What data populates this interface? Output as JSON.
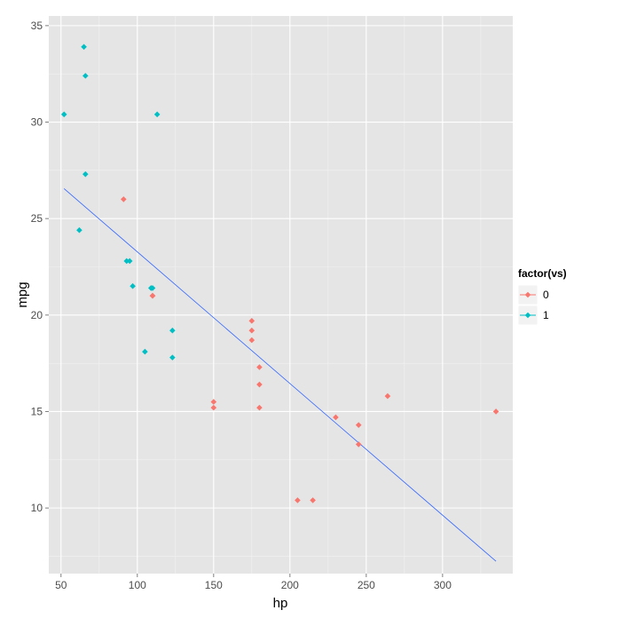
{
  "chart_data": {
    "type": "scatter",
    "xlabel": "hp",
    "ylabel": "mpg",
    "xlim": [
      42,
      346
    ],
    "ylim": [
      6.6,
      35.5
    ],
    "x_ticks": [
      50,
      100,
      150,
      200,
      250,
      300
    ],
    "y_ticks": [
      10,
      15,
      20,
      25,
      30,
      35
    ],
    "grid": true,
    "legend": {
      "title": "factor(vs)",
      "position": "right",
      "entries": [
        "0",
        "1"
      ]
    },
    "series": [
      {
        "name": "0",
        "color": "#F8766D",
        "points": [
          {
            "x": 110,
            "y": 21.0
          },
          {
            "x": 110,
            "y": 21.0
          },
          {
            "x": 175,
            "y": 18.7
          },
          {
            "x": 245,
            "y": 14.3
          },
          {
            "x": 180,
            "y": 16.4
          },
          {
            "x": 180,
            "y": 17.3
          },
          {
            "x": 180,
            "y": 15.2
          },
          {
            "x": 205,
            "y": 10.4
          },
          {
            "x": 215,
            "y": 10.4
          },
          {
            "x": 230,
            "y": 14.7
          },
          {
            "x": 150,
            "y": 15.5
          },
          {
            "x": 150,
            "y": 15.2
          },
          {
            "x": 245,
            "y": 13.3
          },
          {
            "x": 175,
            "y": 19.2
          },
          {
            "x": 91,
            "y": 26.0
          },
          {
            "x": 264,
            "y": 15.8
          },
          {
            "x": 175,
            "y": 19.7
          },
          {
            "x": 335,
            "y": 15.0
          }
        ]
      },
      {
        "name": "1",
        "color": "#00BFC4",
        "points": [
          {
            "x": 93,
            "y": 22.8
          },
          {
            "x": 110,
            "y": 21.4
          },
          {
            "x": 105,
            "y": 18.1
          },
          {
            "x": 62,
            "y": 24.4
          },
          {
            "x": 95,
            "y": 22.8
          },
          {
            "x": 123,
            "y": 19.2
          },
          {
            "x": 123,
            "y": 17.8
          },
          {
            "x": 66,
            "y": 32.4
          },
          {
            "x": 52,
            "y": 30.4
          },
          {
            "x": 65,
            "y": 33.9
          },
          {
            "x": 97,
            "y": 21.5
          },
          {
            "x": 66,
            "y": 27.3
          },
          {
            "x": 113,
            "y": 30.4
          },
          {
            "x": 109,
            "y": 21.4
          }
        ]
      }
    ],
    "trend_line": {
      "color": "#3366FF",
      "x": [
        52,
        335
      ],
      "y": [
        26.55,
        7.24
      ]
    }
  }
}
